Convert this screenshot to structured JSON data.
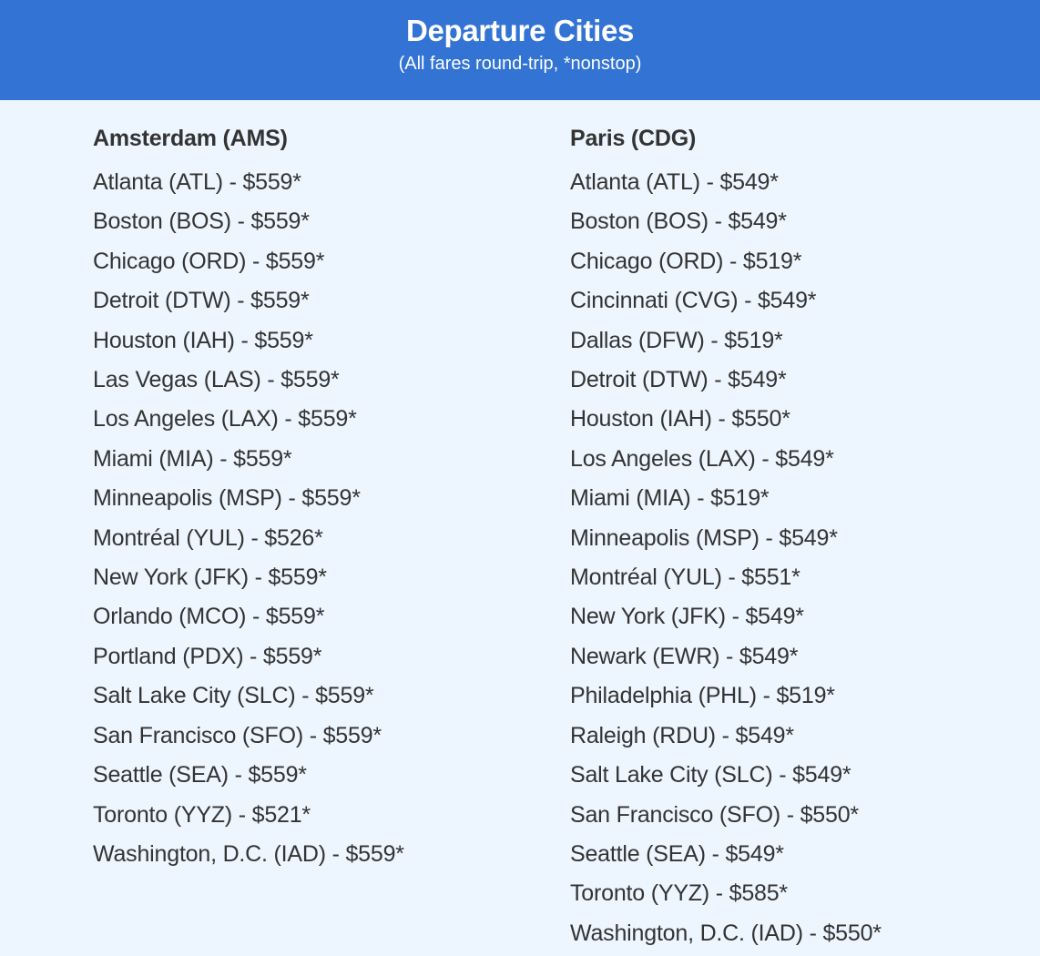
{
  "header": {
    "title": "Departure Cities",
    "subtitle": "(All fares round-trip, *nonstop)",
    "background_color": "#3273d3"
  },
  "columns": [
    {
      "title": "Amsterdam (AMS)",
      "items": [
        "Atlanta (ATL) - $559*",
        "Boston (BOS) - $559*",
        "Chicago (ORD) - $559*",
        "Detroit (DTW) - $559*",
        "Houston (IAH) - $559*",
        "Las Vegas (LAS) - $559*",
        "Los Angeles (LAX) - $559*",
        "Miami (MIA) - $559*",
        "Minneapolis (MSP) - $559*",
        "Montréal (YUL) - $526*",
        "New York (JFK) - $559*",
        "Orlando (MCO) - $559*",
        "Portland (PDX) - $559*",
        "Salt Lake City (SLC) - $559*",
        "San Francisco (SFO) - $559*",
        "Seattle (SEA) - $559*",
        "Toronto (YYZ) - $521*",
        "Washington, D.C. (IAD) - $559*"
      ]
    },
    {
      "title": "Paris (CDG)",
      "items": [
        "Atlanta (ATL) - $549*",
        "Boston (BOS) - $549*",
        "Chicago (ORD) - $519*",
        "Cincinnati (CVG) - $549*",
        "Dallas (DFW) - $519*",
        "Detroit (DTW) - $549*",
        "Houston (IAH) - $550*",
        "Los Angeles (LAX) - $549*",
        "Miami (MIA) - $519*",
        "Minneapolis (MSP) - $549*",
        "Montréal (YUL) - $551*",
        "New York (JFK) - $549*",
        "Newark (EWR) - $549*",
        "Philadelphia (PHL) - $519*",
        "Raleigh (RDU) - $549*",
        "Salt Lake City (SLC) - $549*",
        "San Francisco (SFO) - $550*",
        "Seattle (SEA) - $549*",
        "Toronto (YYZ) - $585*",
        "Washington, D.C. (IAD) - $550*"
      ]
    }
  ]
}
